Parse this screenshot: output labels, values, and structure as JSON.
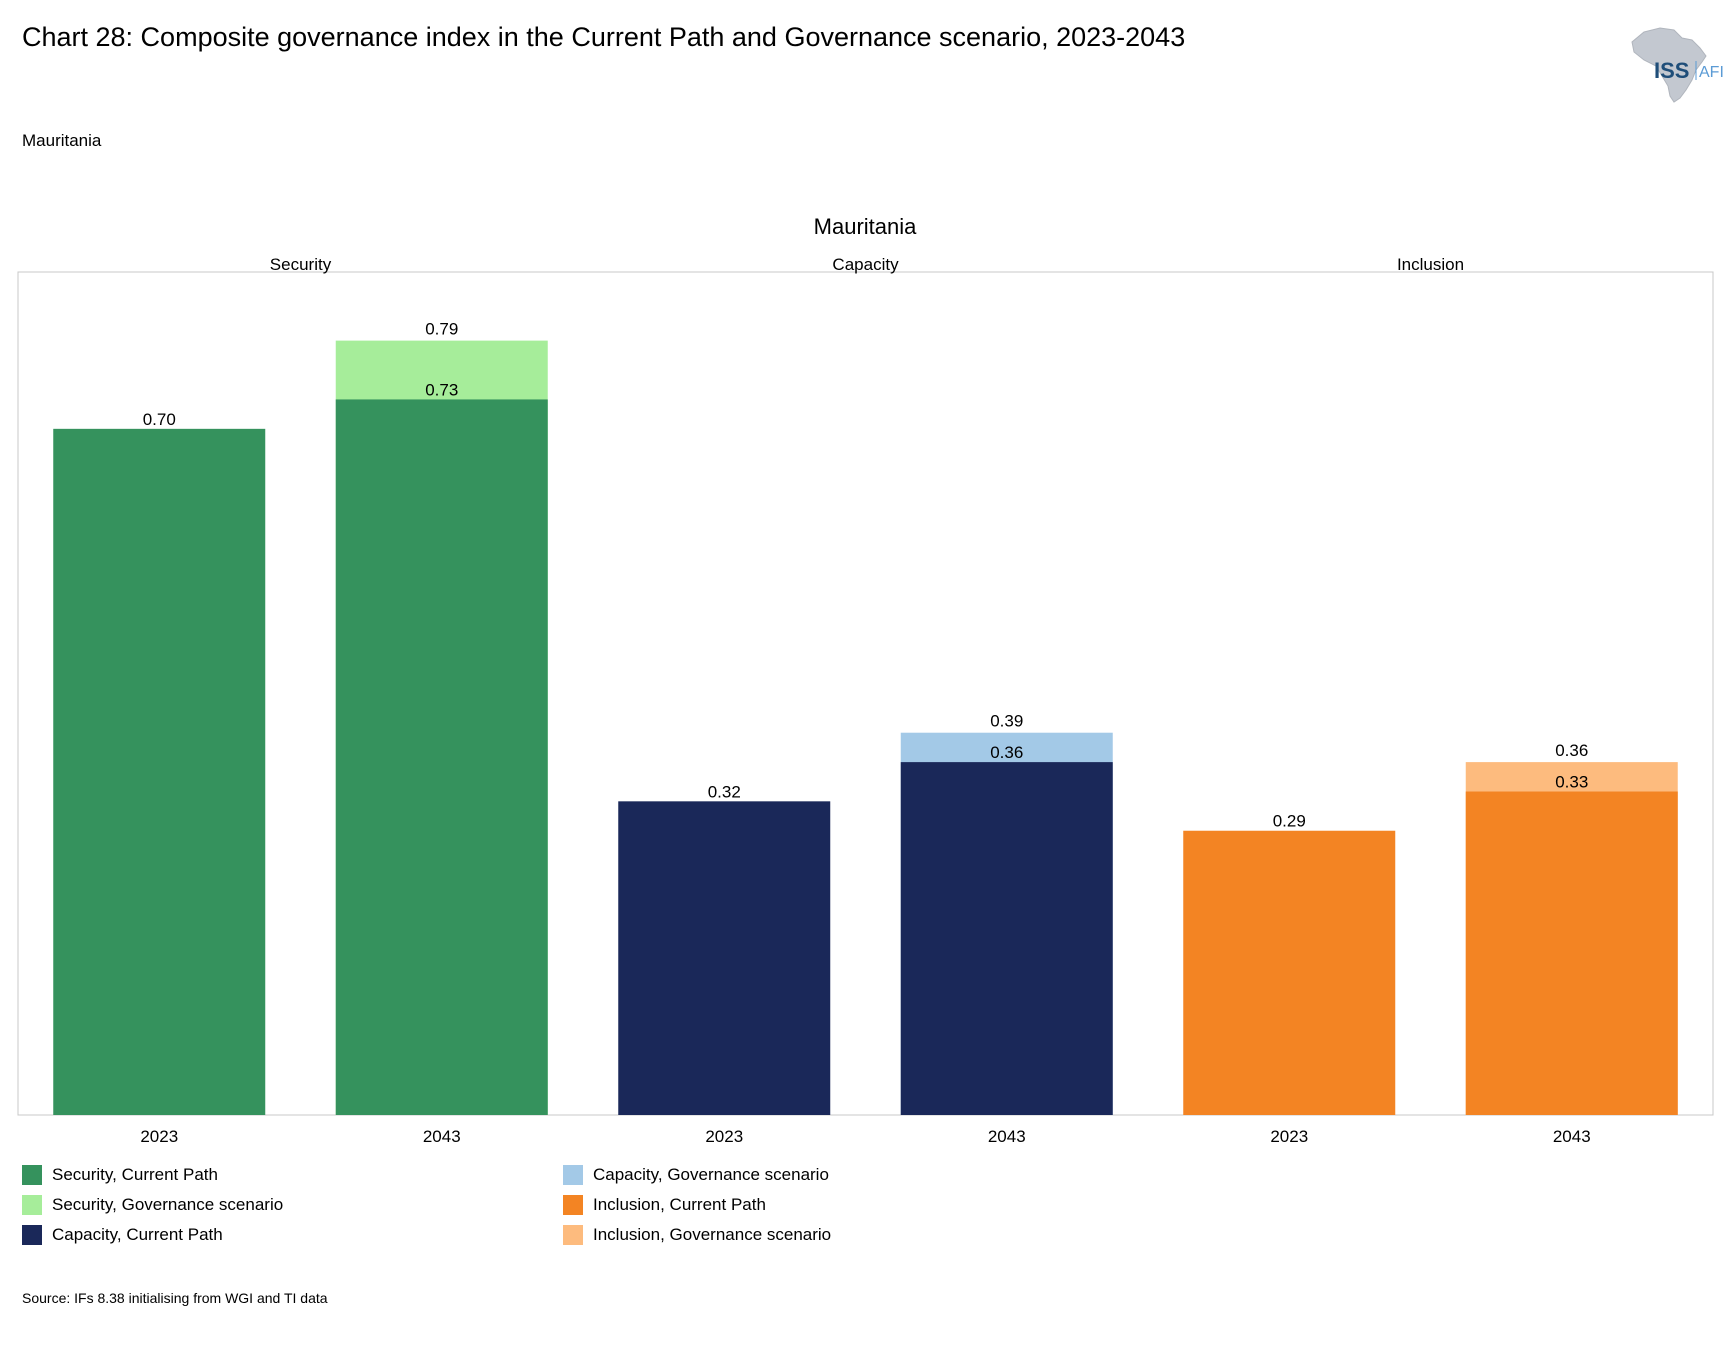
{
  "header": {
    "title": "Chart 28: Composite governance index in the Current Path and Governance scenario, 2023-2043",
    "country": "Mauritania"
  },
  "logo": {
    "text_main": "ISS",
    "text_sub": "AFI",
    "icon": "africa-map-icon"
  },
  "colors": {
    "security_cp": "#35925d",
    "security_gov": "#a6ed9a",
    "capacity_cp": "#1a2859",
    "capacity_gov": "#a3c9e7",
    "inclusion_cp": "#f38423",
    "inclusion_gov": "#fdbb7e",
    "frame": "#c8c8c8"
  },
  "chart_data": {
    "type": "bar",
    "title": "Mauritania",
    "ylim": [
      0,
      0.86
    ],
    "grid": false,
    "panels": [
      {
        "name": "Security",
        "key": "security",
        "categories": [
          "2023",
          "2043"
        ],
        "series": [
          {
            "name": "Security, Current Path",
            "values": [
              0.7,
              0.73
            ]
          },
          {
            "name": "Security, Governance scenario",
            "values": [
              0.7,
              0.79
            ]
          }
        ]
      },
      {
        "name": "Capacity",
        "key": "capacity",
        "categories": [
          "2023",
          "2043"
        ],
        "series": [
          {
            "name": "Capacity, Current Path",
            "values": [
              0.32,
              0.36
            ]
          },
          {
            "name": "Capacity, Governance scenario",
            "values": [
              0.32,
              0.39
            ]
          }
        ]
      },
      {
        "name": "Inclusion",
        "key": "inclusion",
        "categories": [
          "2023",
          "2043"
        ],
        "series": [
          {
            "name": "Inclusion, Current Path",
            "values": [
              0.29,
              0.33
            ]
          },
          {
            "name": "Inclusion, Governance scenario",
            "values": [
              0.29,
              0.36
            ]
          }
        ]
      }
    ],
    "data_labels": {
      "security": {
        "2023": "0.70",
        "2043_cp": "0.73",
        "2043_gov": "0.79"
      },
      "capacity": {
        "2023": "0.32",
        "2043_cp": "0.36",
        "2043_gov": "0.39"
      },
      "inclusion": {
        "2023": "0.29",
        "2043_cp": "0.33",
        "2043_gov": "0.36"
      }
    }
  },
  "legend": {
    "items": [
      {
        "label": "Security, Current Path",
        "color_key": "security_cp"
      },
      {
        "label": "Security, Governance scenario",
        "color_key": "security_gov"
      },
      {
        "label": "Capacity, Current Path",
        "color_key": "capacity_cp"
      },
      {
        "label": "Capacity, Governance scenario",
        "color_key": "capacity_gov"
      },
      {
        "label": "Inclusion, Current Path",
        "color_key": "inclusion_cp"
      },
      {
        "label": "Inclusion, Governance scenario",
        "color_key": "inclusion_gov"
      }
    ]
  },
  "footer": {
    "source": "Source: IFs 8.38 initialising from WGI and TI data"
  }
}
